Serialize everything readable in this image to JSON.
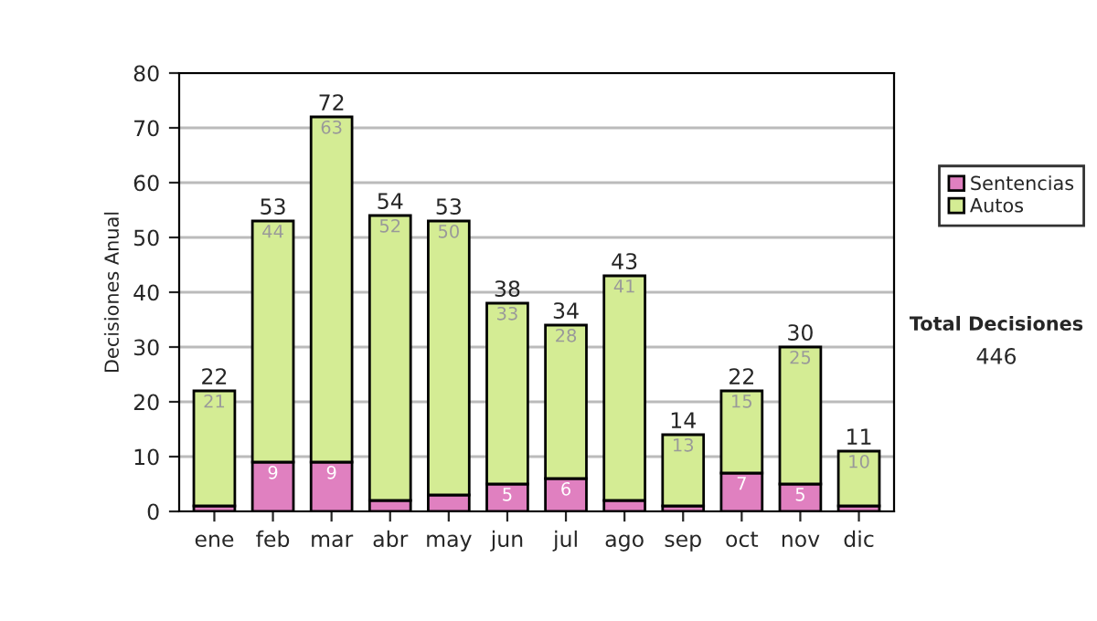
{
  "chart_data": {
    "type": "bar",
    "stacked": true,
    "ylabel": "Decisiones Anual",
    "categories": [
      "ene",
      "feb",
      "mar",
      "abr",
      "may",
      "jun",
      "jul",
      "ago",
      "sep",
      "oct",
      "nov",
      "dic"
    ],
    "series": [
      {
        "name": "Sentencias",
        "color": "#e080c0",
        "values": [
          1,
          9,
          9,
          2,
          3,
          5,
          6,
          2,
          1,
          7,
          5,
          1
        ],
        "value_labels": [
          null,
          "9",
          "9",
          null,
          null,
          "5",
          "6",
          null,
          null,
          "7",
          "5",
          null
        ]
      },
      {
        "name": "Autos",
        "color": "#d4ec94",
        "values": [
          21,
          44,
          63,
          52,
          50,
          33,
          28,
          41,
          13,
          15,
          25,
          10
        ],
        "value_labels": [
          "21",
          "44",
          "63",
          "52",
          "50",
          "33",
          "28",
          "41",
          "13",
          "15",
          "25",
          "10"
        ]
      }
    ],
    "totals": [
      "22",
      "53",
      "72",
      "54",
      "53",
      "38",
      "34",
      "43",
      "14",
      "22",
      "30",
      "11"
    ],
    "ylim": [
      0,
      80
    ],
    "yticks": [
      0,
      10,
      20,
      30,
      40,
      50,
      60,
      70,
      80
    ],
    "grid": "y",
    "legend": "right",
    "annotations": [
      "Total Decisiones",
      "446"
    ]
  }
}
